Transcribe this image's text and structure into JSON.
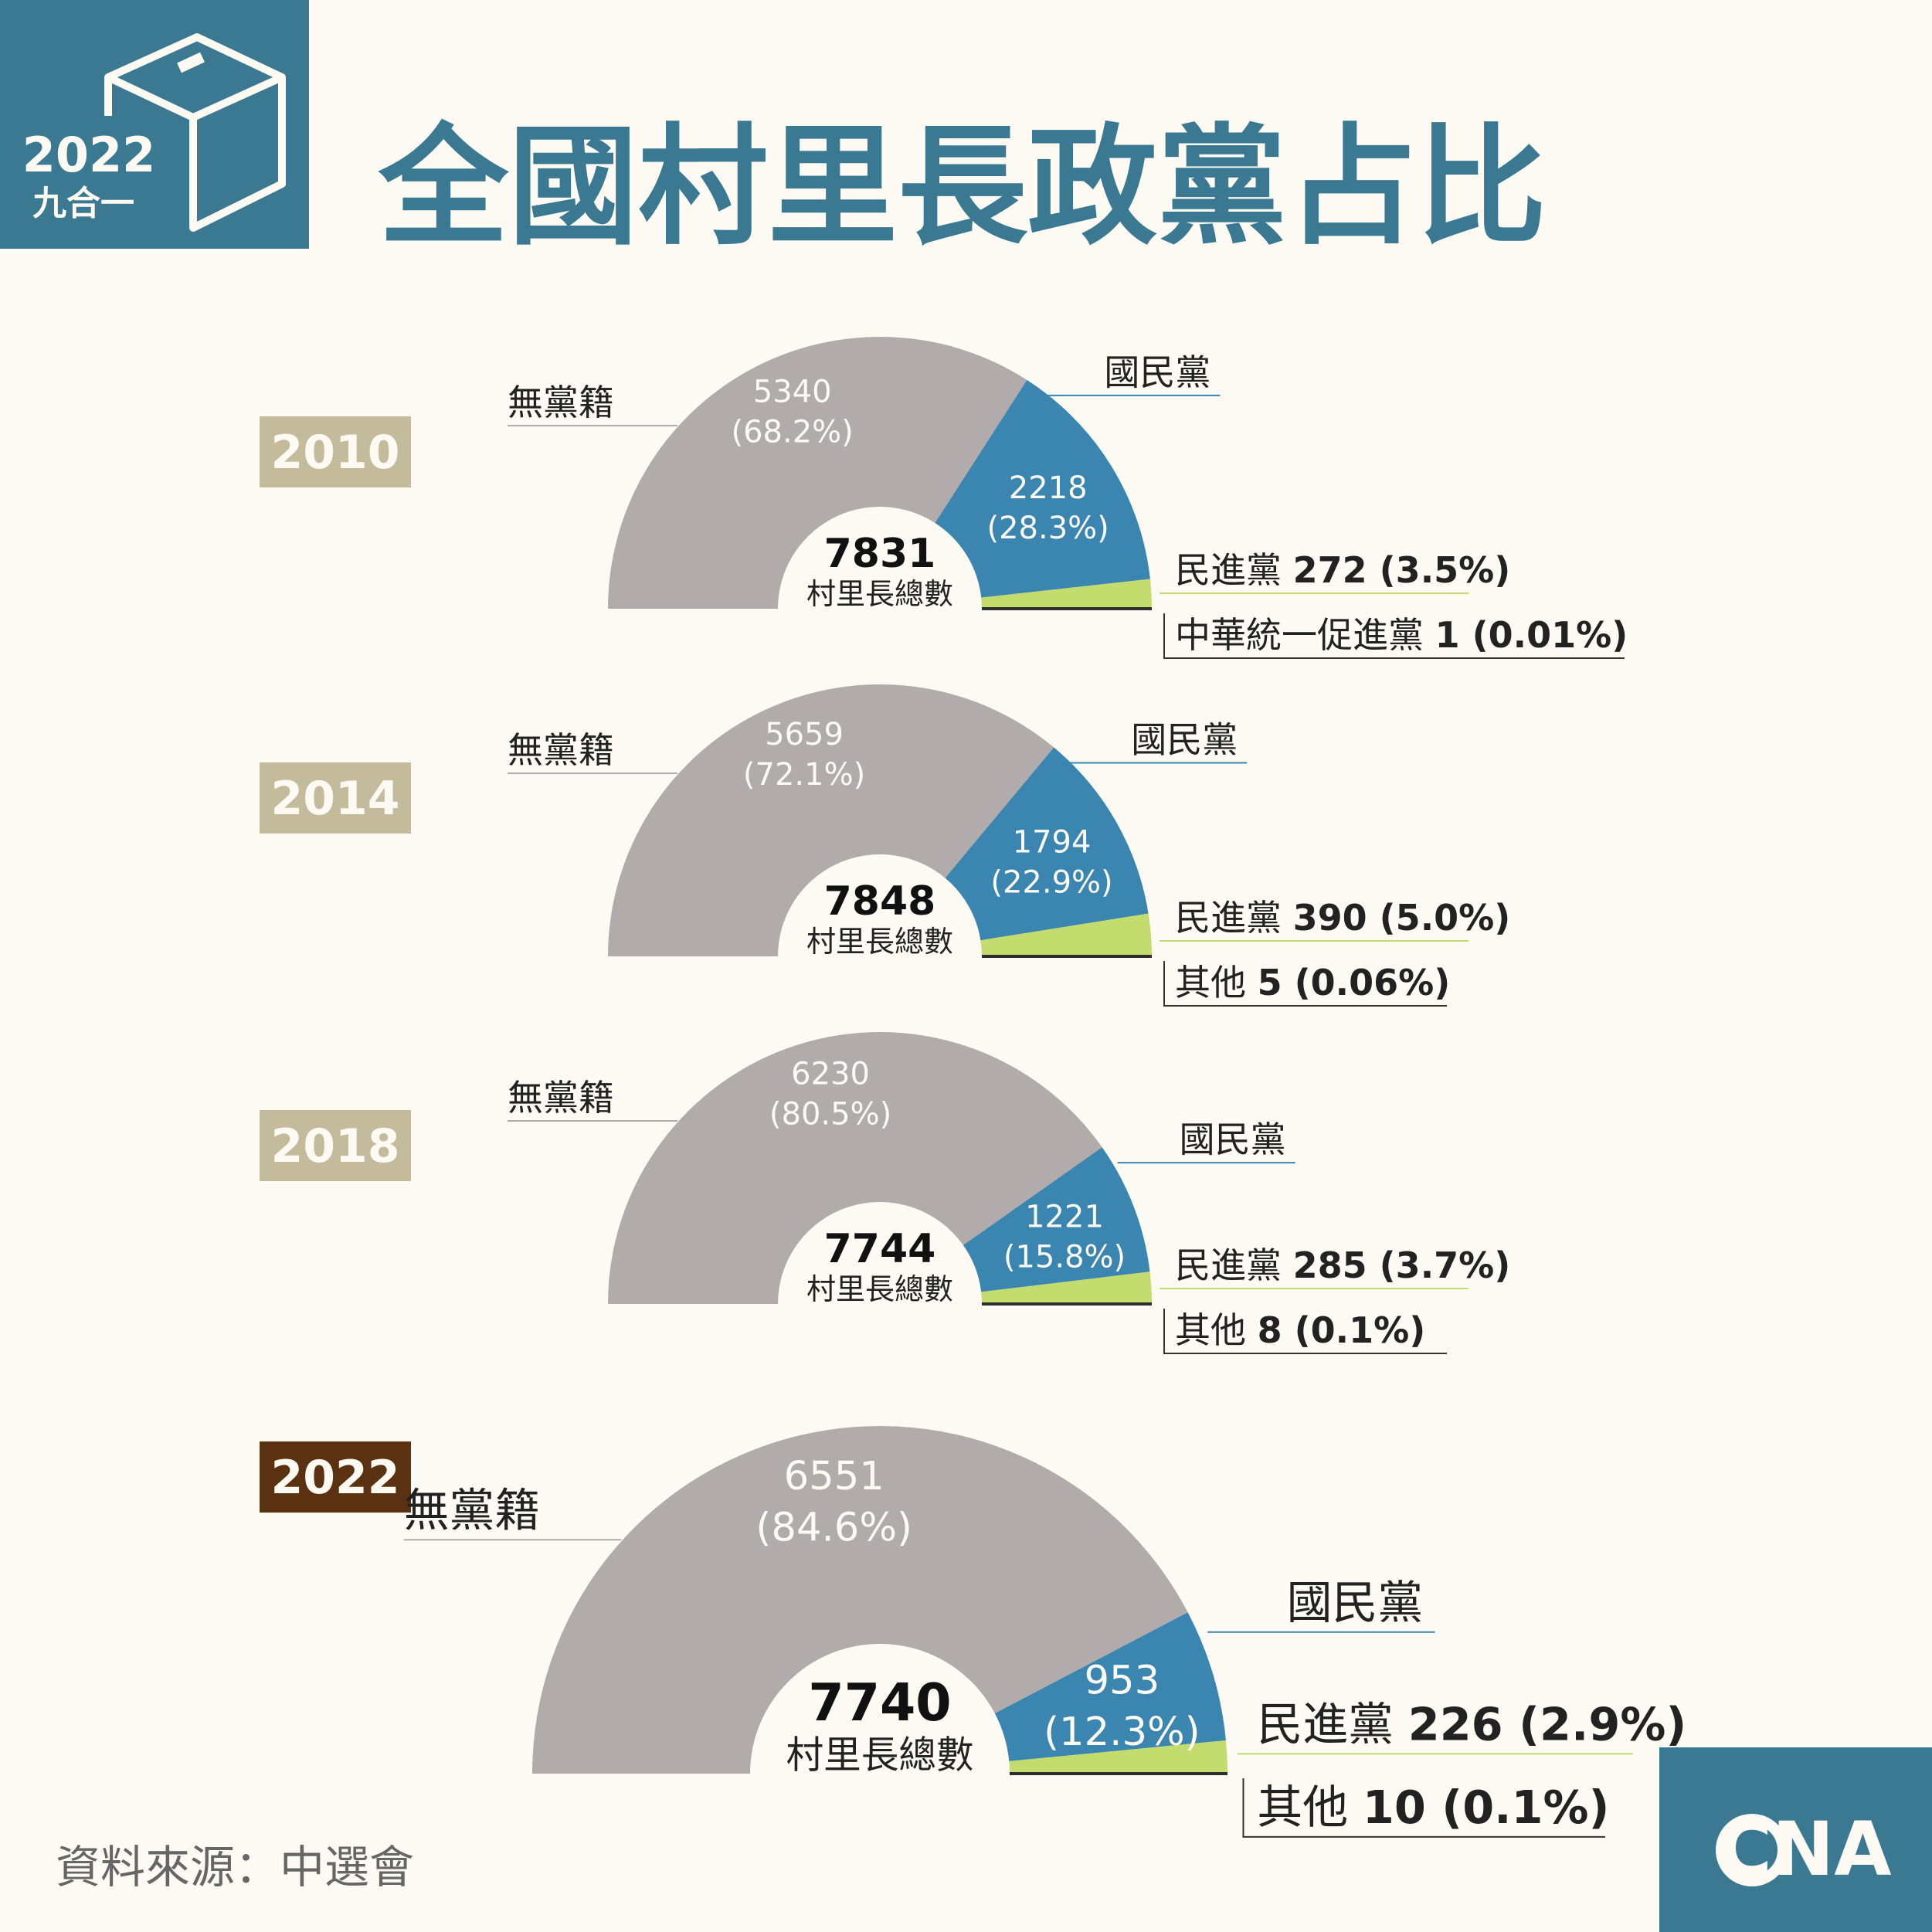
{
  "header": {
    "badge_year": "2022",
    "badge_sub": "九合一",
    "title": "全國村里長政黨占比"
  },
  "footer": {
    "source": "資料來源：中選會",
    "logo_text": "CNA"
  },
  "colors": {
    "background": "#fcfaf2",
    "brand": "#3b7891",
    "independent": "#b1acab",
    "kmt": "#3b86b1",
    "dpp": "#c3dc6d",
    "other": "#2d2d2d",
    "year_past": "#c3bb9b",
    "year_current": "#5b3211",
    "text": "#222222"
  },
  "chart_data": [
    {
      "type": "pie",
      "style": "half-donut",
      "year": "2010",
      "total": "7831",
      "total_label": "村里長總數",
      "slices": [
        {
          "label": "無黨籍",
          "value": 5340,
          "pct": "(68.2%)",
          "color_key": "independent"
        },
        {
          "label": "國民黨",
          "value": 2218,
          "pct": "(28.3%)",
          "color_key": "kmt"
        },
        {
          "label": "民進黨",
          "value": 272,
          "pct": "(3.5%)",
          "color_key": "dpp"
        },
        {
          "label": "中華統一促進黨",
          "value": 1,
          "pct": "(0.01%)",
          "color_key": "other"
        }
      ]
    },
    {
      "type": "pie",
      "style": "half-donut",
      "year": "2014",
      "total": "7848",
      "total_label": "村里長總數",
      "slices": [
        {
          "label": "無黨籍",
          "value": 5659,
          "pct": "(72.1%)",
          "color_key": "independent"
        },
        {
          "label": "國民黨",
          "value": 1794,
          "pct": "(22.9%)",
          "color_key": "kmt"
        },
        {
          "label": "民進黨",
          "value": 390,
          "pct": "(5.0%)",
          "color_key": "dpp"
        },
        {
          "label": "其他",
          "value": 5,
          "pct": "(0.06%)",
          "color_key": "other"
        }
      ]
    },
    {
      "type": "pie",
      "style": "half-donut",
      "year": "2018",
      "total": "7744",
      "total_label": "村里長總數",
      "slices": [
        {
          "label": "無黨籍",
          "value": 6230,
          "pct": "(80.5%)",
          "color_key": "independent"
        },
        {
          "label": "國民黨",
          "value": 1221,
          "pct": "(15.8%)",
          "color_key": "kmt"
        },
        {
          "label": "民進黨",
          "value": 285,
          "pct": "(3.7%)",
          "color_key": "dpp"
        },
        {
          "label": "其他",
          "value": 8,
          "pct": "(0.1%)",
          "color_key": "other"
        }
      ]
    },
    {
      "type": "pie",
      "style": "half-donut",
      "year": "2022",
      "total": "7740",
      "total_label": "村里長總數",
      "slices": [
        {
          "label": "無黨籍",
          "value": 6551,
          "pct": "(84.6%)",
          "color_key": "independent"
        },
        {
          "label": "國民黨",
          "value": 953,
          "pct": "(12.3%)",
          "color_key": "kmt"
        },
        {
          "label": "民進黨",
          "value": 226,
          "pct": "(2.9%)",
          "color_key": "dpp"
        },
        {
          "label": "其他",
          "value": 10,
          "pct": "(0.1%)",
          "color_key": "other"
        }
      ]
    }
  ]
}
